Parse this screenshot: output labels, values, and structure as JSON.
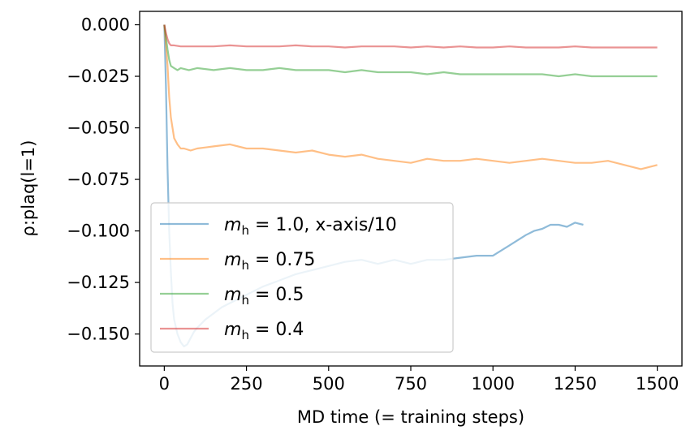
{
  "chart_data": {
    "type": "line",
    "title": "",
    "xlabel": "MD time (= training steps)",
    "ylabel": "ρ:plaq(l=1)",
    "xlim": [
      -75,
      1575
    ],
    "ylim": [
      -0.1655,
      0.0065
    ],
    "xticks": [
      0,
      250,
      500,
      750,
      1000,
      1250,
      1500
    ],
    "xtick_labels": [
      "0",
      "250",
      "500",
      "750",
      "1000",
      "1250",
      "1500"
    ],
    "yticks": [
      0.0,
      -0.025,
      -0.05,
      -0.075,
      -0.1,
      -0.125,
      -0.15
    ],
    "ytick_labels": [
      "0.000",
      "−0.025",
      "−0.050",
      "−0.075",
      "−0.100",
      "−0.125",
      "−0.150"
    ],
    "grid": false,
    "legend_position": "lower-left",
    "series": [
      {
        "label_sym": "m",
        "label_sub": "h",
        "label_rest": " = 1.0, x-axis/10",
        "color": "#1f77b4",
        "x": [
          0,
          5,
          10,
          15,
          20,
          25,
          30,
          40,
          50,
          60,
          70,
          80,
          90,
          100,
          125,
          150,
          175,
          200,
          250,
          300,
          350,
          400,
          450,
          500,
          550,
          600,
          650,
          700,
          750,
          800,
          850,
          900,
          950,
          1000,
          1050,
          1100,
          1125,
          1150,
          1175,
          1200,
          1225,
          1250,
          1275
        ],
        "y": [
          0.0,
          -0.03,
          -0.07,
          -0.1,
          -0.12,
          -0.135,
          -0.143,
          -0.15,
          -0.154,
          -0.156,
          -0.155,
          -0.152,
          -0.149,
          -0.147,
          -0.143,
          -0.14,
          -0.137,
          -0.135,
          -0.131,
          -0.127,
          -0.124,
          -0.121,
          -0.119,
          -0.117,
          -0.115,
          -0.114,
          -0.116,
          -0.114,
          -0.116,
          -0.114,
          -0.114,
          -0.113,
          -0.112,
          -0.112,
          -0.107,
          -0.102,
          -0.1,
          -0.099,
          -0.097,
          -0.097,
          -0.098,
          -0.096,
          -0.097
        ]
      },
      {
        "label_sym": "m",
        "label_sub": "h",
        "label_rest": " = 0.75",
        "color": "#ff7f0e",
        "x": [
          0,
          5,
          10,
          15,
          20,
          30,
          40,
          50,
          60,
          80,
          100,
          150,
          200,
          250,
          300,
          350,
          400,
          450,
          500,
          550,
          600,
          650,
          700,
          750,
          800,
          850,
          900,
          950,
          1000,
          1050,
          1100,
          1150,
          1200,
          1250,
          1300,
          1350,
          1400,
          1450,
          1500
        ],
        "y": [
          0.0,
          -0.01,
          -0.02,
          -0.035,
          -0.045,
          -0.055,
          -0.058,
          -0.06,
          -0.06,
          -0.061,
          -0.06,
          -0.059,
          -0.058,
          -0.06,
          -0.06,
          -0.061,
          -0.062,
          -0.061,
          -0.063,
          -0.064,
          -0.063,
          -0.065,
          -0.066,
          -0.067,
          -0.065,
          -0.066,
          -0.066,
          -0.065,
          -0.066,
          -0.067,
          -0.066,
          -0.065,
          -0.066,
          -0.067,
          -0.067,
          -0.066,
          -0.068,
          -0.07,
          -0.068
        ]
      },
      {
        "label_sym": "m",
        "label_sub": "h",
        "label_rest": " = 0.5",
        "color": "#2ca02c",
        "x": [
          0,
          5,
          10,
          15,
          20,
          30,
          40,
          50,
          75,
          100,
          150,
          200,
          250,
          300,
          350,
          400,
          450,
          500,
          550,
          600,
          650,
          700,
          750,
          800,
          850,
          900,
          950,
          1000,
          1050,
          1100,
          1150,
          1200,
          1250,
          1300,
          1350,
          1400,
          1450,
          1500
        ],
        "y": [
          0.0,
          -0.006,
          -0.012,
          -0.017,
          -0.02,
          -0.021,
          -0.022,
          -0.021,
          -0.022,
          -0.021,
          -0.022,
          -0.021,
          -0.022,
          -0.022,
          -0.021,
          -0.022,
          -0.022,
          -0.022,
          -0.023,
          -0.022,
          -0.023,
          -0.023,
          -0.023,
          -0.024,
          -0.023,
          -0.024,
          -0.024,
          -0.024,
          -0.024,
          -0.024,
          -0.024,
          -0.025,
          -0.024,
          -0.025,
          -0.025,
          -0.025,
          -0.025,
          -0.025
        ]
      },
      {
        "label_sym": "m",
        "label_sub": "h",
        "label_rest": " = 0.4",
        "color": "#d62728",
        "x": [
          0,
          5,
          10,
          15,
          20,
          30,
          50,
          100,
          150,
          200,
          250,
          300,
          350,
          400,
          450,
          500,
          550,
          600,
          650,
          700,
          750,
          800,
          850,
          900,
          950,
          1000,
          1050,
          1100,
          1150,
          1200,
          1250,
          1300,
          1350,
          1400,
          1450,
          1500
        ],
        "y": [
          0.0,
          -0.004,
          -0.007,
          -0.009,
          -0.01,
          -0.01,
          -0.0105,
          -0.0105,
          -0.0105,
          -0.01,
          -0.0105,
          -0.0105,
          -0.0105,
          -0.01,
          -0.0105,
          -0.0105,
          -0.011,
          -0.0105,
          -0.0105,
          -0.0105,
          -0.011,
          -0.0105,
          -0.011,
          -0.0105,
          -0.011,
          -0.011,
          -0.0105,
          -0.011,
          -0.011,
          -0.011,
          -0.0105,
          -0.011,
          -0.011,
          -0.011,
          -0.011,
          -0.011
        ]
      }
    ]
  }
}
